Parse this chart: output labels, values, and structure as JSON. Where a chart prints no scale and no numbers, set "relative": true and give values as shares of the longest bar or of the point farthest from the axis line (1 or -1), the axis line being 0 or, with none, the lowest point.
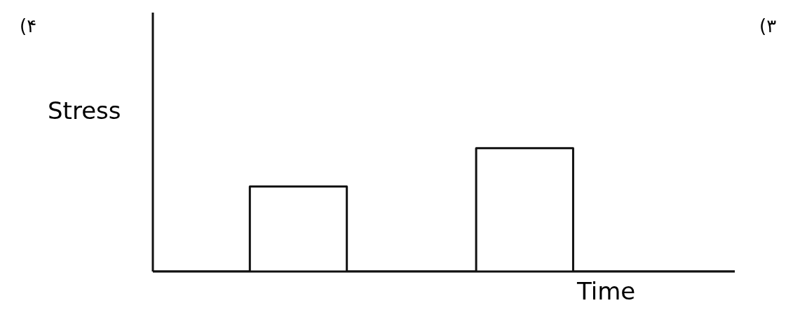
{
  "chart_data": {
    "type": "step",
    "relative": true,
    "xlabel": "Time",
    "ylabel": "Stress",
    "annotations": [
      "(۴",
      "(۳"
    ],
    "categories": [
      null,
      null,
      null,
      null,
      null,
      null,
      null,
      null,
      null,
      null,
      null,
      null,
      null,
      null,
      null,
      null,
      null,
      null,
      null
    ],
    "series": [
      {
        "color": "#111111",
        "values": [
          0,
          0,
          0,
          0.69,
          0.69,
          0.69,
          0,
          0,
          0,
          0,
          1,
          1,
          1,
          0,
          0,
          0,
          0,
          0,
          0
        ]
      }
    ],
    "marker": "none",
    "line_style": "solid"
  }
}
